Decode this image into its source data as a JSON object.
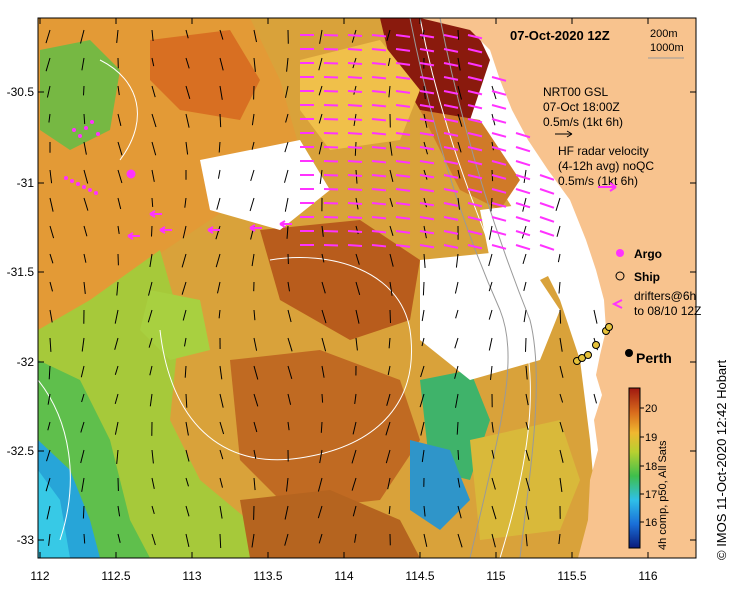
{
  "title": "07-Oct-2020 12Z",
  "contours": [
    "200m",
    "1000m"
  ],
  "gsl_legend": [
    "NRT00 GSL",
    "07-Oct 18:00Z",
    "0.5m/s (1kt 6h)"
  ],
  "hf_legend": [
    "HF radar velocity",
    "(4-12h avg) noQC",
    "0.5m/s (1kt 6h)"
  ],
  "markers": {
    "argo": "Argo",
    "ship": "Ship",
    "drifters": [
      "drifters@6h",
      "to 08/10 12Z"
    ]
  },
  "place": "Perth",
  "colorbar": {
    "label": "4h comp, p50, All Sats",
    "ticks": [
      "20",
      "19",
      "18",
      "17",
      "16"
    ]
  },
  "credit": "© IMOS 11-Oct-2020 12:42 Hobart",
  "axes": {
    "x_ticks": [
      "112",
      "112.5",
      "113",
      "113.5",
      "114",
      "114.5",
      "115",
      "115.5",
      "116"
    ],
    "y_ticks": [
      "-30.5",
      "-31",
      "-31.5",
      "-32",
      "-32.5",
      "-33"
    ]
  },
  "colors": {
    "land": "#f8c38e",
    "hf_arrow": "#ff33ff",
    "gsl_arrow": "#000000"
  }
}
